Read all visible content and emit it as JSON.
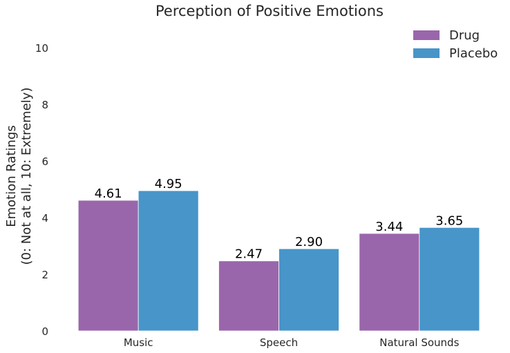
{
  "chart_data": {
    "type": "bar",
    "title": "Perception of Positive Emotions",
    "xlabel": "",
    "ylabel_lines": [
      "Emotion Ratings",
      "(0: Not at all, 10: Extremely)"
    ],
    "categories": [
      "Music",
      "Speech",
      "Natural Sounds"
    ],
    "series": [
      {
        "name": "Drug",
        "color": "#9a66ab",
        "values": [
          4.61,
          2.47,
          3.44
        ],
        "labels": [
          "4.61",
          "2.47",
          "3.44"
        ]
      },
      {
        "name": "Placebo",
        "color": "#4795c9",
        "values": [
          4.95,
          2.9,
          3.65
        ],
        "labels": [
          "4.95",
          "2.90",
          "3.65"
        ]
      }
    ],
    "ylim": [
      0,
      11
    ],
    "yticks": [
      0,
      2,
      4,
      6,
      8,
      10
    ],
    "ytick_labels": [
      "0",
      "2",
      "4",
      "6",
      "8",
      "10"
    ],
    "grid": false,
    "legend_position": "top-right"
  }
}
